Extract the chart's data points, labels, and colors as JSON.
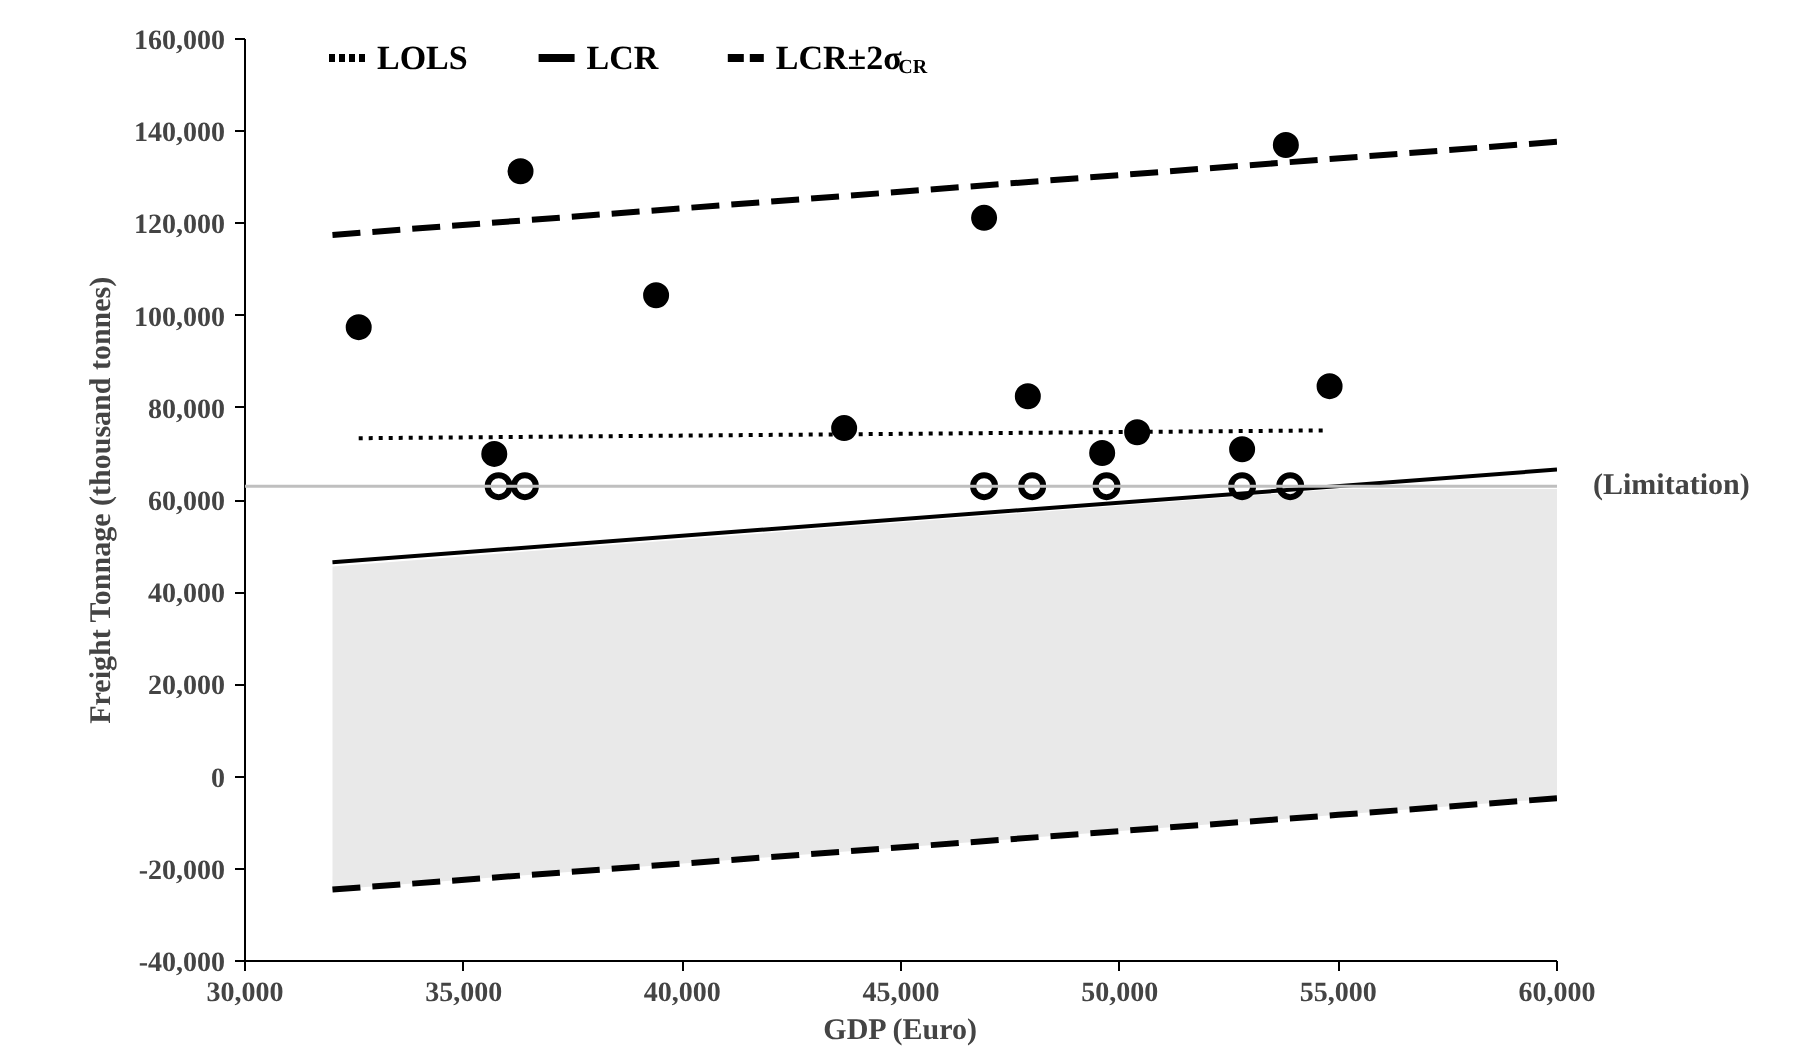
{
  "chart_data": {
    "type": "scatter",
    "xlabel": "GDP (Euro)",
    "ylabel": "Freight Tonnage (thousand tonnes)",
    "xlim": [
      30000,
      60000
    ],
    "xticks": [
      {
        "value": 30000,
        "label": "30,000"
      },
      {
        "value": 35000,
        "label": "35,000"
      },
      {
        "value": 40000,
        "label": "40,000"
      },
      {
        "value": 45000,
        "label": "45,000"
      },
      {
        "value": 50000,
        "label": "50,000"
      },
      {
        "value": 55000,
        "label": "55,000"
      },
      {
        "value": 60000,
        "label": "60,000"
      }
    ],
    "ylim": [
      -40000,
      160000
    ],
    "yticks": [
      {
        "value": -40000,
        "label": "-40,000"
      },
      {
        "value": -20000,
        "label": "-20,000"
      },
      {
        "value": 0,
        "label": "0"
      },
      {
        "value": 20000,
        "label": "20,000"
      },
      {
        "value": 40000,
        "label": "40,000"
      },
      {
        "value": 60000,
        "label": "60,000"
      },
      {
        "value": 80000,
        "label": "80,000"
      },
      {
        "value": 100000,
        "label": "100,000"
      },
      {
        "value": 120000,
        "label": "120,000"
      },
      {
        "value": 140000,
        "label": "140,000"
      },
      {
        "value": 160000,
        "label": "160,000"
      }
    ],
    "grid": false,
    "legend": "top",
    "ref_lines": [
      {
        "axis": "y",
        "value": 63000,
        "label": "(Limitation)",
        "color": "#bfbfbf"
      }
    ],
    "series": [
      {
        "type": "line",
        "name": "LOLS",
        "color": "#000000",
        "line_style": "dotted",
        "x": [
          32600,
          54700
        ],
        "values": [
          73400,
          75100
        ]
      },
      {
        "type": "line",
        "name": "LCR",
        "color": "#000000",
        "line_style": "solid",
        "x": [
          32000,
          60000
        ],
        "values": [
          46500,
          66600
        ]
      },
      {
        "type": "line",
        "name": "LCR±2σ$_{CR}$",
        "color": "#000000",
        "line_style": "dashed",
        "x": [
          32000,
          60000
        ],
        "values": [
          117500,
          137700
        ]
      },
      {
        "type": "line",
        "color": "#000000",
        "line_style": "dashed",
        "x": [
          32000,
          55000,
          60000
        ],
        "values": [
          -24500,
          -8300,
          -4700
        ],
        "lower": [
          -24500,
          -8300,
          -4700
        ],
        "upper": [
          45600,
          62400,
          62400
        ]
      },
      {
        "color": "#000000",
        "marker": "circle",
        "x": [
          32600,
          36300,
          35700,
          39400,
          43700,
          46900,
          47900,
          53800,
          50400,
          49600,
          52800,
          54800
        ],
        "values": [
          97500,
          131300,
          70000,
          104400,
          75600,
          121200,
          82500,
          137000,
          74700,
          70200,
          71000,
          84700
        ]
      },
      {
        "color": "#000000",
        "marker": "circle",
        "x": [
          35800,
          36400,
          46900,
          48000,
          49700,
          52800,
          53900
        ],
        "values": [
          63000,
          63000,
          63000,
          63000,
          63000,
          63000,
          63000
        ]
      }
    ]
  }
}
